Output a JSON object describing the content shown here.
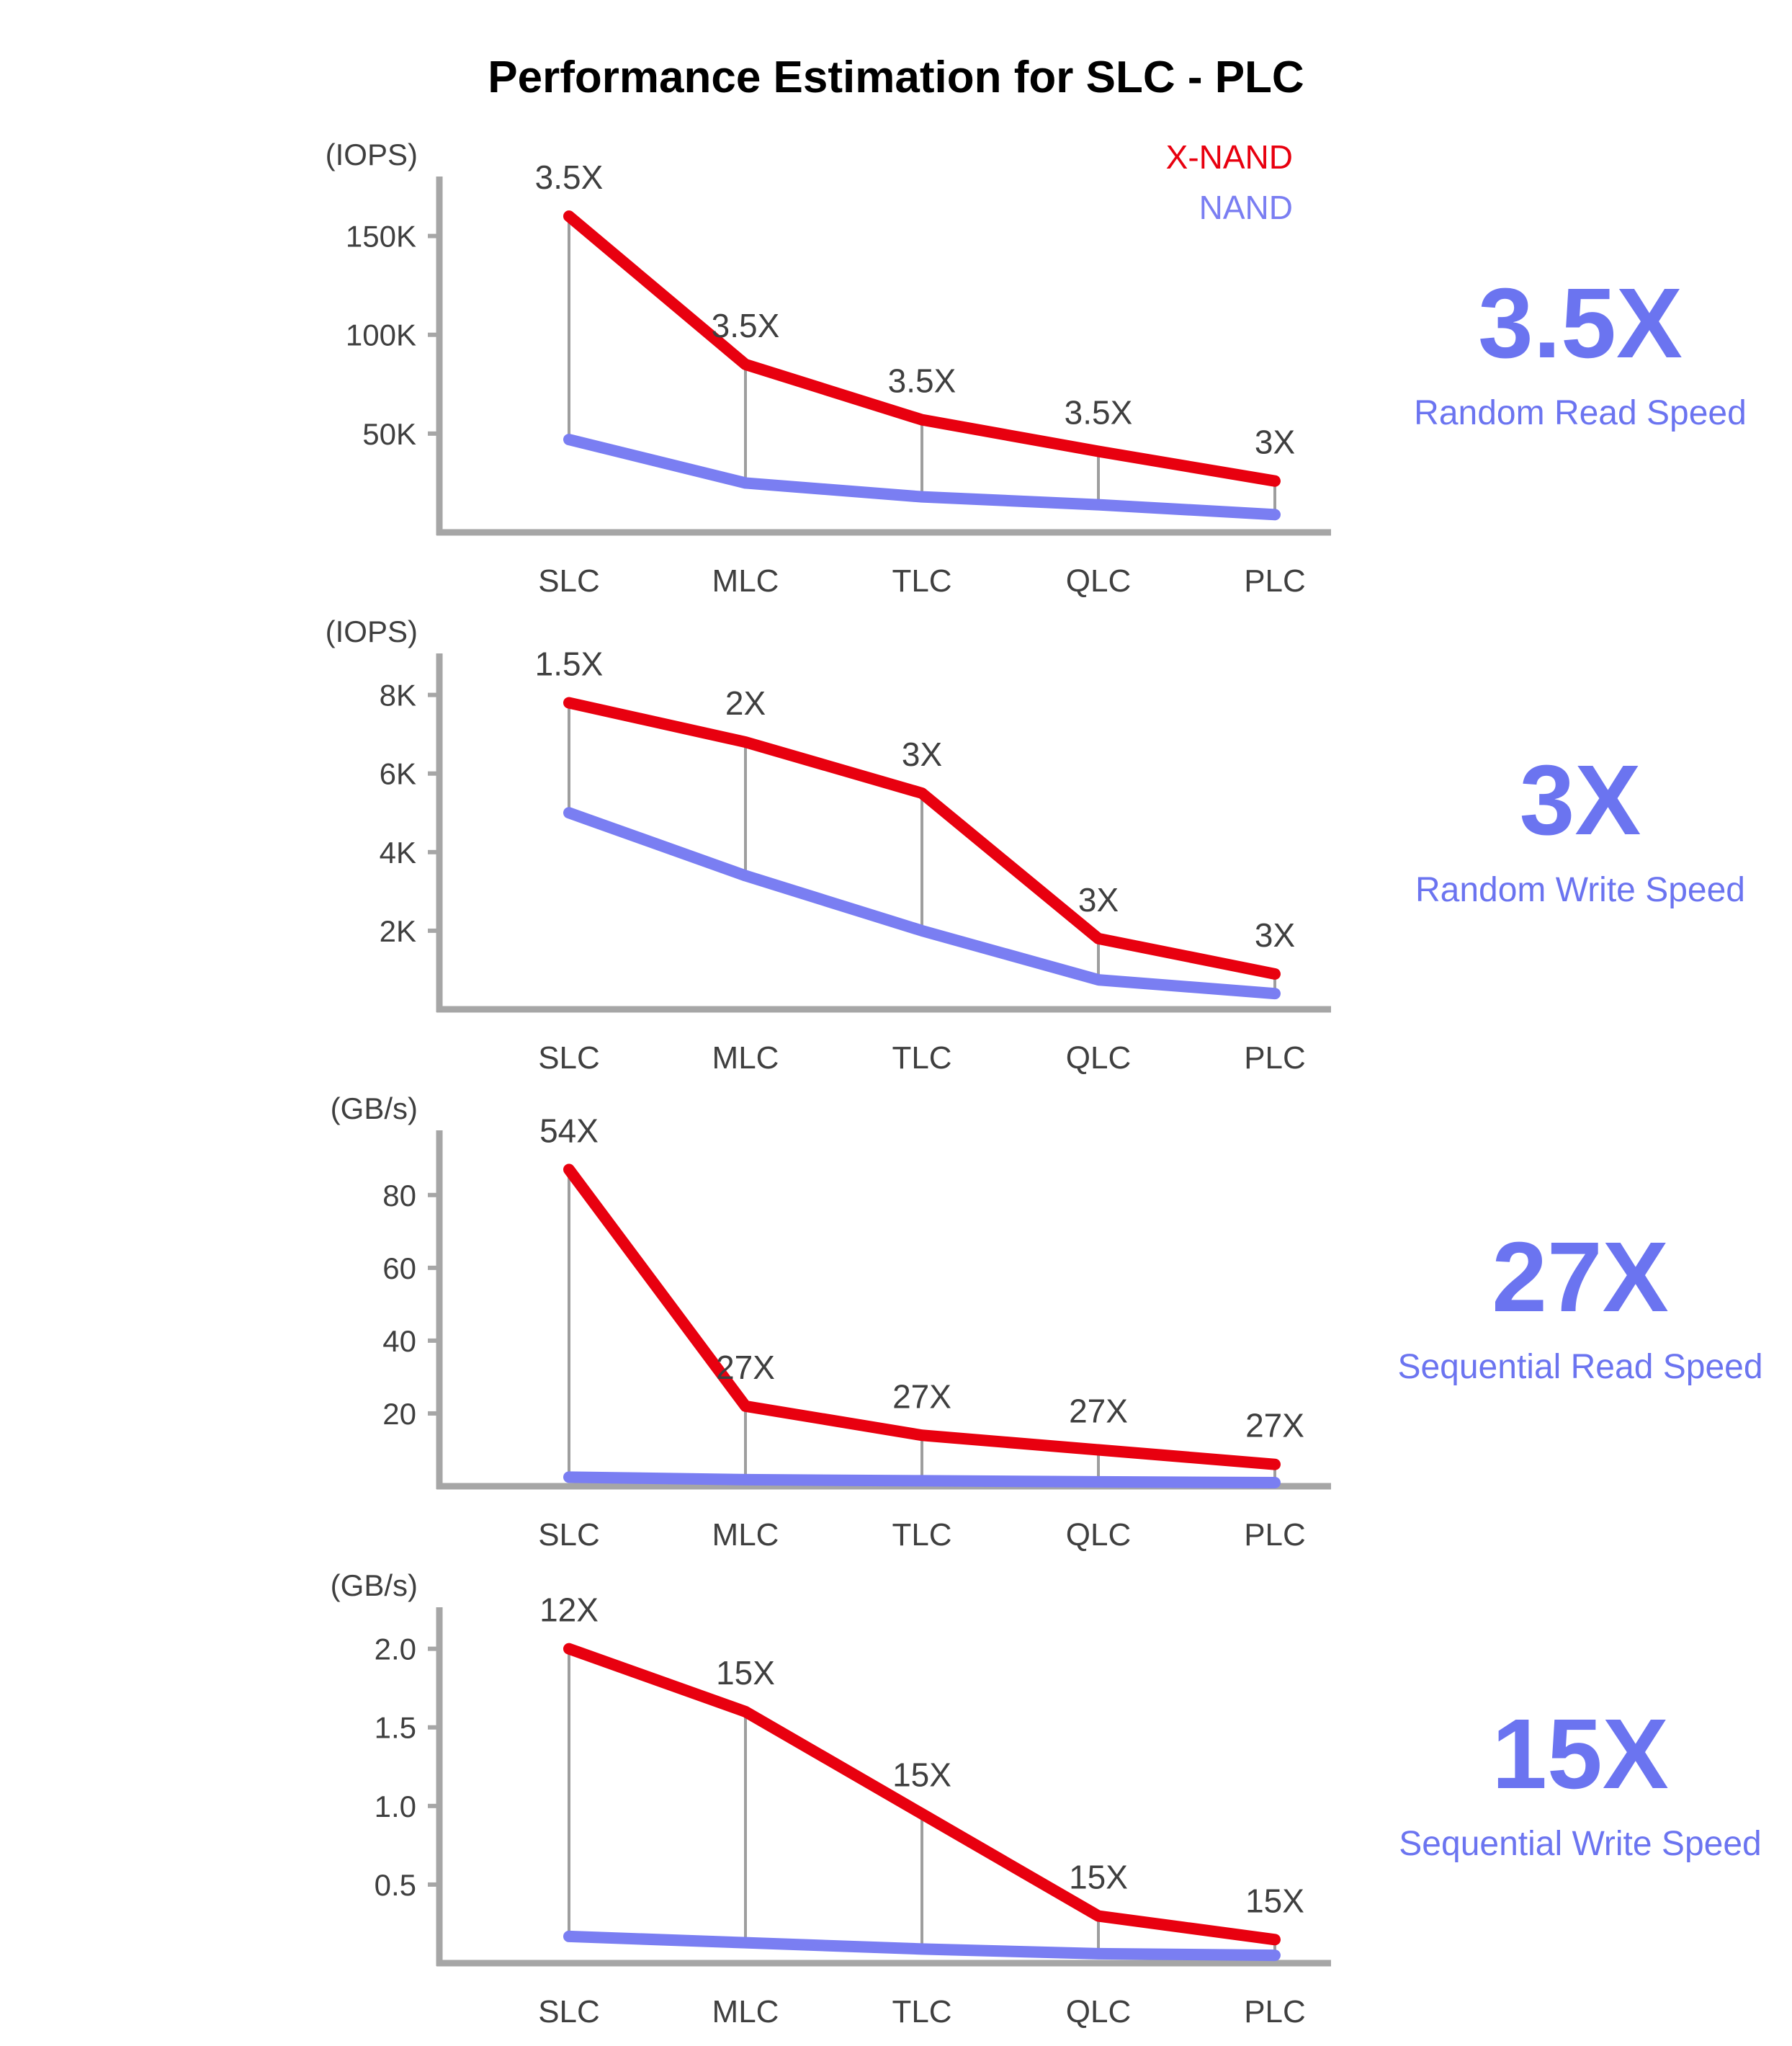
{
  "chart_data": {
    "type": "line",
    "title": "Performance Estimation for SLC - PLC",
    "categories": [
      "SLC",
      "MLC",
      "TLC",
      "QLC",
      "PLC"
    ],
    "legend": [
      {
        "label": "X-NAND",
        "color": "#e8000f"
      },
      {
        "label": "NAND",
        "color": "#7a7ef2"
      }
    ],
    "colors": {
      "xnand": "#e8000f",
      "nand": "#7a7ef2",
      "axis": "#a6a6a6",
      "droplines": "#9e9e9e",
      "text": "#3f3f3f",
      "callout": "#6b74f0"
    },
    "charts": [
      {
        "name": "Random Read Speed",
        "unit": "(IOPS)",
        "ylim": [
          0,
          175000
        ],
        "yticks": [
          {
            "value": 50000,
            "label": "50K"
          },
          {
            "value": 100000,
            "label": "100K"
          },
          {
            "value": 150000,
            "label": "150K"
          }
        ],
        "series": [
          {
            "name": "X-NAND",
            "values": [
              160000,
              85000,
              57000,
              41000,
              26000
            ]
          },
          {
            "name": "NAND",
            "values": [
              47000,
              25000,
              18000,
              14000,
              9000
            ]
          }
        ],
        "annotations": [
          "3.5X",
          "3.5X",
          "3.5X",
          "3.5X",
          "3X"
        ],
        "show_legend": true,
        "callout": {
          "value": "3.5X",
          "label": "Random Read Speed"
        }
      },
      {
        "name": "Random Write Speed",
        "unit": "(IOPS)",
        "ylim": [
          0,
          8800
        ],
        "yticks": [
          {
            "value": 2000,
            "label": "2K"
          },
          {
            "value": 4000,
            "label": "4K"
          },
          {
            "value": 6000,
            "label": "6K"
          },
          {
            "value": 8000,
            "label": "8K"
          }
        ],
        "series": [
          {
            "name": "X-NAND",
            "values": [
              7800,
              6800,
              5500,
              1800,
              900
            ]
          },
          {
            "name": "NAND",
            "values": [
              5000,
              3400,
              2000,
              750,
              400
            ]
          }
        ],
        "annotations": [
          "1.5X",
          "2X",
          "3X",
          "3X",
          "3X"
        ],
        "show_legend": false,
        "callout": {
          "value": "3X",
          "label": "Random Write Speed"
        }
      },
      {
        "name": "Sequential Read Speed",
        "unit": "(GB/s)",
        "ylim": [
          0,
          95
        ],
        "yticks": [
          {
            "value": 20,
            "label": "20"
          },
          {
            "value": 40,
            "label": "40"
          },
          {
            "value": 60,
            "label": "60"
          },
          {
            "value": 80,
            "label": "80"
          }
        ],
        "series": [
          {
            "name": "X-NAND",
            "values": [
              87,
              22,
              14,
              10,
              6
            ]
          },
          {
            "name": "NAND",
            "values": [
              2.5,
              1.8,
              1.5,
              1.2,
              1.0
            ]
          }
        ],
        "annotations": [
          "54X",
          "27X",
          "27X",
          "27X",
          "27X"
        ],
        "show_legend": false,
        "callout": {
          "value": "27X",
          "label": "Sequential Read Speed"
        }
      },
      {
        "name": "Sequential Write Speed",
        "unit": "(GB/s)",
        "ylim": [
          0,
          2.2
        ],
        "yticks": [
          {
            "value": 0.5,
            "label": "0.5"
          },
          {
            "value": 1.0,
            "label": "1.0"
          },
          {
            "value": 1.5,
            "label": "1.5"
          },
          {
            "value": 2.0,
            "label": "2.0"
          }
        ],
        "series": [
          {
            "name": "X-NAND",
            "values": [
              2.0,
              1.6,
              0.95,
              0.3,
              0.15
            ]
          },
          {
            "name": "NAND",
            "values": [
              0.17,
              0.13,
              0.09,
              0.06,
              0.05
            ]
          }
        ],
        "annotations": [
          "12X",
          "15X",
          "15X",
          "15X",
          "15X"
        ],
        "show_legend": false,
        "callout": {
          "value": "15X",
          "label": "Sequential Write Speed"
        }
      }
    ]
  }
}
